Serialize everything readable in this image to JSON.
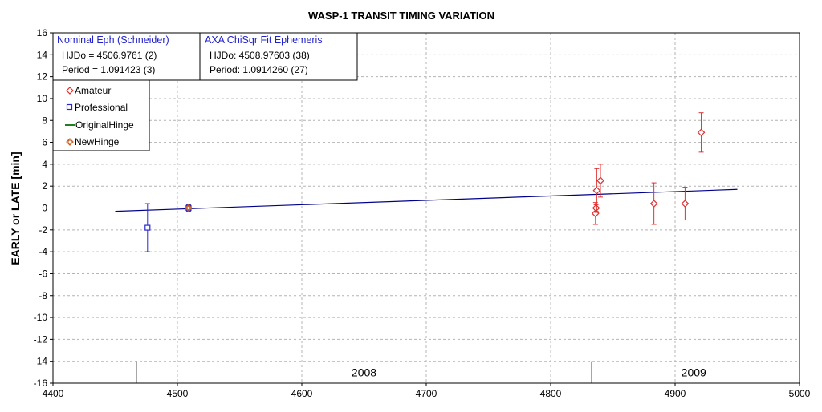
{
  "chart_data": {
    "type": "scatter",
    "title": "WASP-1 TRANSIT TIMING VARIATION",
    "ylabel": "EARLY or LATE [min]",
    "xlabel": "",
    "xlim": [
      4400,
      5000
    ],
    "ylim": [
      -16,
      16
    ],
    "x_ticks": [
      4400,
      4500,
      4600,
      4700,
      4800,
      4900,
      5000
    ],
    "y_ticks": [
      -16,
      -14,
      -12,
      -10,
      -8,
      -6,
      -4,
      -2,
      0,
      2,
      4,
      6,
      8,
      10,
      12,
      14,
      16
    ],
    "grid": true,
    "legend_position": "top-left",
    "series": [
      {
        "name": "Amateur",
        "marker": "diamond",
        "color": "#e03030",
        "points": [
          {
            "x": 4836,
            "y": -0.5,
            "err": 1.0
          },
          {
            "x": 4836.5,
            "y": 0.0,
            "err": 0.3
          },
          {
            "x": 4837,
            "y": 1.6,
            "err": 2.0
          },
          {
            "x": 4840,
            "y": 2.5,
            "err": 1.5
          },
          {
            "x": 4883,
            "y": 0.4,
            "err": 1.9
          },
          {
            "x": 4908,
            "y": 0.4,
            "err": 1.5
          },
          {
            "x": 4921,
            "y": 6.9,
            "err": 1.8
          }
        ]
      },
      {
        "name": "Professional",
        "marker": "square",
        "color": "#2828d0",
        "points": [
          {
            "x": 4476,
            "y": -1.8,
            "err": 2.2
          },
          {
            "x": 4509,
            "y": 0.0,
            "err": 0.3
          }
        ]
      },
      {
        "name": "OriginalHinge",
        "marker": "line",
        "color": "#208020",
        "points": []
      },
      {
        "name": "NewHinge",
        "marker": "circle",
        "color": "#c86020",
        "points": [
          {
            "x": 4509,
            "y": 0.0
          }
        ]
      }
    ],
    "fit_line": {
      "color": "#00008b",
      "x": [
        4450,
        4950
      ],
      "y": [
        -0.3,
        1.7
      ]
    },
    "year_dividers": [
      4467,
      4833
    ],
    "year_labels": [
      {
        "text": "2008",
        "x": 4650
      },
      {
        "text": "2009",
        "x": 4915
      }
    ],
    "info_boxes": [
      {
        "heading": "Nominal Eph (Schneider)",
        "line1": "HJDo = 4506.9761 (2)",
        "line2": "Period = 1.091423 (3)"
      },
      {
        "heading": "AXA ChiSqr Fit Ephemeris",
        "line1": "HJDo:  4508.97603 (38)",
        "line2": "Period:  1.0914260 (27)"
      }
    ]
  }
}
